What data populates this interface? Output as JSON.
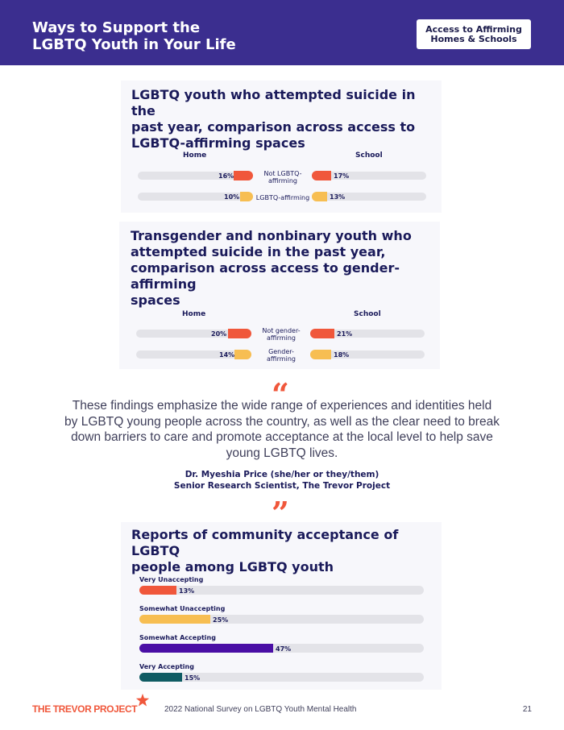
{
  "header": {
    "title": "Ways to Support the\nLGBTQ Youth in Your Life",
    "badge": "Access to Affirming\nHomes & Schools"
  },
  "colors": {
    "header_bg": "#3b2e8f",
    "red": "#f0573b",
    "yellow": "#f7be52",
    "purple": "#4a0fa5",
    "teal": "#0f5b63",
    "track": "#e3e3e8"
  },
  "chart1": {
    "title": "LGBTQ youth who attempted suicide in the\npast year, comparison across access to\nLGBTQ-affirming spaces",
    "col_left": "Home",
    "col_right": "School",
    "rows": [
      {
        "label": "Not LGBTQ-\naffirming",
        "home": "16%",
        "school": "17%"
      },
      {
        "label": "LGBTQ-affirming",
        "home": "10%",
        "school": "13%"
      }
    ]
  },
  "chart2": {
    "title": "Transgender and nonbinary youth who\nattempted suicide in the past year,\ncomparison across access to gender-affirming\nspaces",
    "col_left": "Home",
    "col_right": "School",
    "rows": [
      {
        "label": "Not gender-\naffirming",
        "home": "20%",
        "school": "21%"
      },
      {
        "label": "Gender-\naffirming",
        "home": "14%",
        "school": "18%"
      }
    ]
  },
  "quote": {
    "open_mark": "“",
    "close_mark": "”",
    "text": "These findings emphasize the wide range of experiences and identities held by LGBTQ young people across the country, as well as the clear need to break down barriers to care and promote acceptance at the local level to help save young LGBTQ lives.",
    "author": "Dr. Myeshia Price (she/her or they/them)",
    "role": "Senior Research Scientist, The Trevor Project"
  },
  "chart3": {
    "title": "Reports of community acceptance of LGBTQ\npeople among LGBTQ youth",
    "rows": [
      {
        "label": "Very Unaccepting",
        "value": "13%"
      },
      {
        "label": "Somewhat Unaccepting",
        "value": "25%"
      },
      {
        "label": "Somewhat Accepting",
        "value": "47%"
      },
      {
        "label": "Very Accepting",
        "value": "15%"
      }
    ]
  },
  "chart_data": [
    {
      "type": "bar",
      "title": "LGBTQ youth who attempted suicide in the past year, comparison across access to LGBTQ-affirming spaces",
      "categories": [
        "Not LGBTQ-affirming",
        "LGBTQ-affirming"
      ],
      "series": [
        {
          "name": "Home",
          "values": [
            16,
            10
          ]
        },
        {
          "name": "School",
          "values": [
            17,
            13
          ]
        }
      ]
    },
    {
      "type": "bar",
      "title": "Transgender and nonbinary youth who attempted suicide in the past year, comparison across access to gender-affirming spaces",
      "categories": [
        "Not gender-affirming",
        "Gender-affirming"
      ],
      "series": [
        {
          "name": "Home",
          "values": [
            20,
            14
          ]
        },
        {
          "name": "School",
          "values": [
            21,
            18
          ]
        }
      ]
    },
    {
      "type": "bar",
      "title": "Reports of community acceptance of LGBTQ people among LGBTQ youth",
      "categories": [
        "Very Unaccepting",
        "Somewhat Unaccepting",
        "Somewhat Accepting",
        "Very Accepting"
      ],
      "values": [
        13,
        25,
        47,
        15
      ]
    }
  ],
  "footer": {
    "logo": "THE TREVOR PROJECT",
    "survey": "2022 National Survey on LGBTQ Youth Mental Health",
    "page": "21"
  }
}
